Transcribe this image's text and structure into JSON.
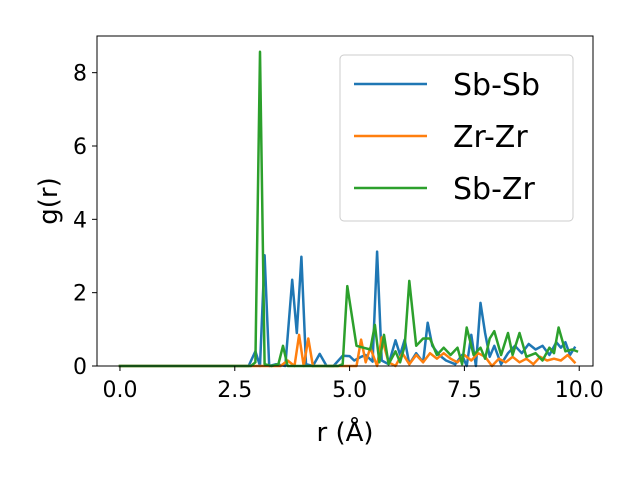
{
  "chart_data": {
    "type": "line",
    "title": "",
    "xlabel": "r (Å)",
    "ylabel": "g(r)",
    "xlim": [
      -0.5,
      10.3
    ],
    "ylim": [
      0,
      9
    ],
    "xticks": [
      {
        "value": 0.0,
        "label": "0.0"
      },
      {
        "value": 2.5,
        "label": "2.5"
      },
      {
        "value": 5.0,
        "label": "5.0"
      },
      {
        "value": 7.5,
        "label": "7.5"
      },
      {
        "value": 10.0,
        "label": "10.0"
      }
    ],
    "yticks": [
      {
        "value": 0,
        "label": "0"
      },
      {
        "value": 2,
        "label": "2"
      },
      {
        "value": 4,
        "label": "4"
      },
      {
        "value": 6,
        "label": "6"
      },
      {
        "value": 8,
        "label": "8"
      }
    ],
    "grid": false,
    "legend_position": "top-right",
    "series": [
      {
        "name": "Sb-Sb",
        "color": "#1f77b4",
        "x": [
          0.0,
          2.6,
          2.8,
          2.95,
          3.05,
          3.15,
          3.25,
          3.4,
          3.6,
          3.75,
          3.85,
          3.95,
          4.05,
          4.2,
          4.35,
          4.5,
          4.65,
          4.85,
          5.0,
          5.1,
          5.25,
          5.35,
          5.5,
          5.6,
          5.7,
          5.85,
          6.0,
          6.1,
          6.2,
          6.3,
          6.45,
          6.6,
          6.7,
          6.8,
          6.95,
          7.1,
          7.3,
          7.45,
          7.55,
          7.65,
          7.75,
          7.85,
          7.95,
          8.05,
          8.15,
          8.3,
          8.45,
          8.6,
          8.75,
          8.9,
          9.05,
          9.2,
          9.35,
          9.5,
          9.6,
          9.7,
          9.8,
          9.9
        ],
        "values": [
          0.0,
          0.0,
          0.0,
          0.4,
          0.0,
          3.02,
          0.0,
          0.05,
          0.0,
          2.35,
          0.9,
          2.98,
          0.05,
          0.0,
          0.33,
          0.0,
          0.0,
          0.28,
          0.27,
          0.15,
          0.25,
          0.3,
          0.12,
          3.12,
          0.15,
          0.05,
          0.7,
          0.3,
          0.72,
          0.05,
          0.35,
          0.1,
          1.18,
          0.55,
          0.3,
          0.15,
          0.05,
          0.3,
          0.0,
          0.85,
          0.0,
          1.72,
          0.9,
          0.25,
          0.55,
          0.05,
          0.35,
          0.55,
          0.35,
          0.6,
          0.45,
          0.55,
          0.3,
          0.65,
          0.5,
          0.65,
          0.3,
          0.5
        ]
      },
      {
        "name": "Zr-Zr",
        "color": "#ff7f0e",
        "x": [
          0.0,
          2.6,
          3.5,
          3.65,
          3.8,
          3.9,
          4.0,
          4.1,
          4.2,
          4.4,
          5.0,
          5.15,
          5.25,
          5.35,
          5.45,
          5.6,
          5.7,
          5.85,
          6.0,
          6.15,
          6.3,
          6.45,
          6.6,
          6.75,
          6.9,
          7.05,
          7.2,
          7.35,
          7.5,
          7.65,
          7.8,
          7.95,
          8.1,
          8.25,
          8.4,
          8.55,
          8.7,
          8.85,
          9.0,
          9.15,
          9.3,
          9.45,
          9.6,
          9.75,
          9.9
        ],
        "values": [
          0.0,
          0.0,
          0.0,
          0.15,
          0.0,
          0.85,
          0.0,
          0.75,
          0.0,
          0.0,
          0.0,
          0.0,
          0.72,
          0.1,
          0.5,
          0.0,
          0.78,
          0.1,
          0.0,
          0.35,
          0.05,
          0.3,
          0.1,
          0.35,
          0.2,
          0.35,
          0.2,
          0.1,
          0.3,
          0.15,
          0.35,
          0.25,
          0.0,
          0.2,
          0.1,
          0.25,
          0.1,
          0.2,
          0.05,
          0.25,
          0.15,
          0.2,
          0.15,
          0.3,
          0.1
        ]
      },
      {
        "name": "Sb-Zr",
        "color": "#2ca02c",
        "x": [
          0.0,
          2.6,
          2.85,
          2.95,
          3.05,
          3.15,
          3.3,
          3.45,
          3.55,
          3.65,
          4.0,
          4.4,
          4.75,
          4.85,
          4.95,
          5.15,
          5.3,
          5.45,
          5.55,
          5.65,
          5.75,
          5.85,
          6.0,
          6.1,
          6.2,
          6.3,
          6.45,
          6.6,
          6.75,
          6.9,
          7.05,
          7.2,
          7.35,
          7.45,
          7.55,
          7.7,
          7.85,
          7.95,
          8.05,
          8.15,
          8.3,
          8.45,
          8.55,
          8.7,
          8.85,
          9.05,
          9.2,
          9.35,
          9.45,
          9.55,
          9.7,
          9.85,
          9.95
        ],
        "values": [
          0.0,
          0.0,
          0.0,
          0.1,
          8.57,
          0.05,
          0.0,
          0.05,
          0.55,
          0.0,
          0.0,
          0.0,
          0.0,
          0.05,
          2.18,
          0.55,
          0.5,
          0.45,
          1.12,
          0.1,
          0.85,
          0.05,
          0.4,
          0.1,
          0.55,
          2.32,
          0.55,
          0.75,
          0.75,
          0.3,
          0.5,
          0.3,
          0.5,
          0.05,
          1.05,
          0.3,
          0.5,
          0.2,
          0.75,
          0.95,
          0.3,
          0.9,
          0.3,
          0.9,
          0.25,
          0.35,
          0.15,
          0.5,
          0.35,
          1.05,
          0.4,
          0.45,
          0.4
        ]
      }
    ]
  }
}
